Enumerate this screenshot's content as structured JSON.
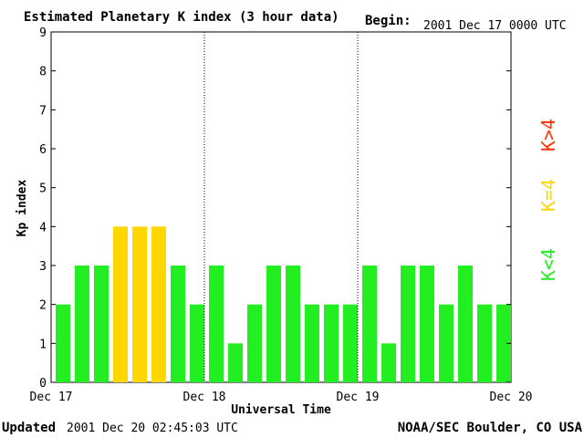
{
  "header": {
    "title": "Estimated Planetary K index (3 hour data)",
    "begin_label": "Begin:",
    "begin_value": "2001 Dec 17 0000 UTC"
  },
  "footer": {
    "updated_label": "Updated",
    "updated_value": "2001 Dec 20 02:45:03 UTC",
    "source": "NOAA/SEC Boulder, CO USA"
  },
  "legend": {
    "items": [
      {
        "label": "K<4",
        "color": "#22ee22"
      },
      {
        "label": "K=4",
        "color": "#ffd700"
      },
      {
        "label": "K>4",
        "color": "#ff3300"
      }
    ]
  },
  "chart_data": {
    "type": "bar",
    "title": "Estimated Planetary K index (3 hour data)",
    "xlabel": "Universal Time",
    "ylabel": "Kp index",
    "ylim": [
      0,
      9
    ],
    "yticks": [
      0,
      1,
      2,
      3,
      4,
      5,
      6,
      7,
      8,
      9
    ],
    "xlim": [
      0,
      72
    ],
    "xticks": [
      {
        "hour": 0,
        "label": "Dec 17"
      },
      {
        "hour": 24,
        "label": "Dec 18"
      },
      {
        "hour": 48,
        "label": "Dec 19"
      },
      {
        "hour": 72,
        "label": "Dec 20"
      }
    ],
    "day_separators": [
      24,
      48
    ],
    "bar_interval_hours": 3,
    "values": [
      2,
      3,
      3,
      4,
      4,
      4,
      3,
      2,
      3,
      1,
      2,
      3,
      3,
      2,
      2,
      2,
      3,
      1,
      3,
      3,
      2,
      3,
      2,
      2
    ],
    "colors": {
      "below_4": "#22ee22",
      "equal_4": "#ffd700",
      "above_4": "#ff3300"
    }
  }
}
